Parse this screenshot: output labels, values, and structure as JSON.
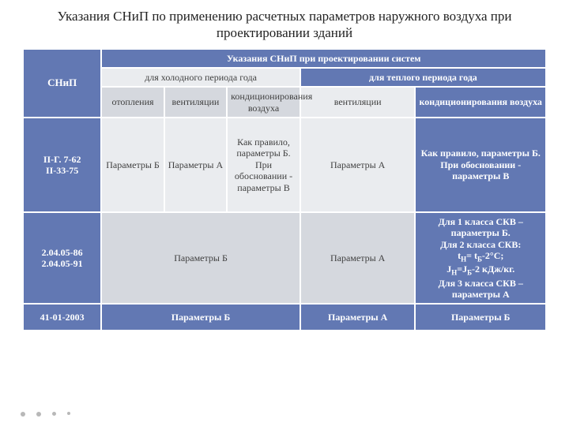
{
  "title": "Указания СНиП по применению расчетных параметров наружного воздуха при проектировании зданий",
  "header": {
    "snip": "СНиП",
    "top_group": "Указания СНиП при проектировании систем",
    "cold_period": "для холодного периода года",
    "warm_period": "для теплого периода года",
    "cold_cols": {
      "heating": "отопления",
      "ventilation": "вентиляции",
      "conditioning": "кондиционирования воздуха"
    },
    "warm_cols": {
      "ventilation": "вентиляции",
      "conditioning": "кондиционирования воздуха"
    }
  },
  "rows": [
    {
      "snip": "II-Г.  7-62\nII-33-75",
      "cold_heating": "Параметры Б",
      "cold_vent": "Параметры А",
      "cold_cond": "Как правило, параметры Б.\nПри обосновании - параметры В",
      "warm_vent": "Параметры А",
      "warm_cond": "Как правило, параметры Б.\nПри обосновании - параметры В"
    },
    {
      "snip": "2.04.05-86\n2.04.05-91",
      "cold_merged": "Параметры Б",
      "warm_vent": "Параметры А",
      "warm_cond_html": "Для 1 класса СКВ – параметры Б.\nДля 2 класса СКВ:\ntН= tБ-2°С;\nJН=JБ-2 кДж/кг.\nДля 3 класса СКВ – параметры А"
    },
    {
      "snip": "41-01-2003",
      "cold_merged": "Параметры Б",
      "warm_vent": "Параметры А",
      "warm_cond": "Параметры Б"
    }
  ],
  "colors": {
    "blue": "#6278b3",
    "light_grey": "#eaecef",
    "mid_grey": "#d5d8de",
    "white": "#ffffff",
    "text_dark": "#404040"
  },
  "col_widths_pct": [
    15,
    12,
    12,
    14,
    22,
    25
  ]
}
